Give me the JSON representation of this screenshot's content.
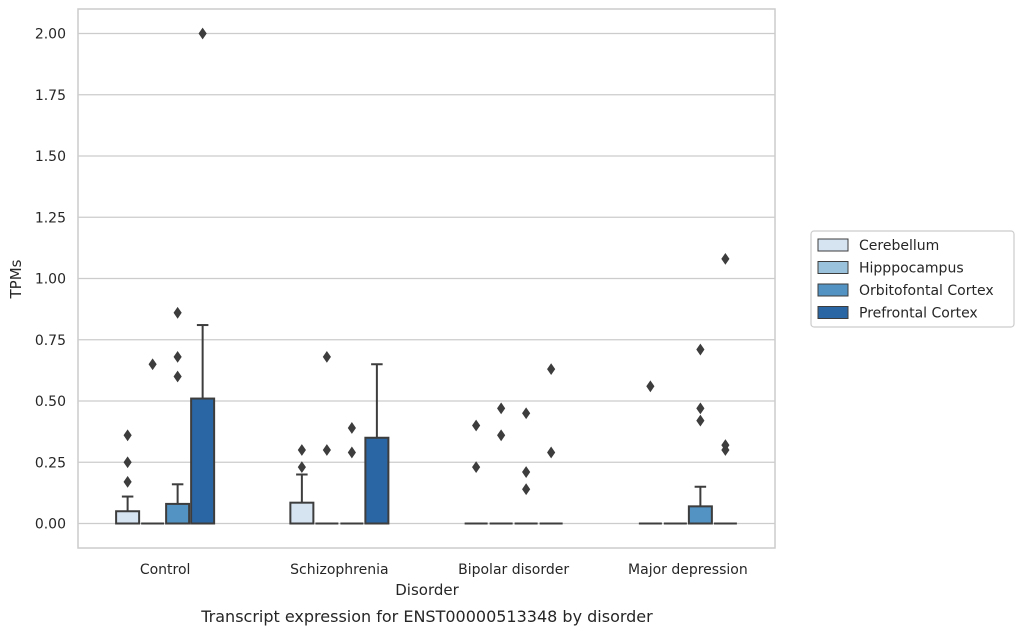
{
  "chart_data": {
    "type": "boxplot",
    "caption": "Transcript expression for ENST00000513348 by disorder",
    "xlabel": "Disorder",
    "ylabel": "TPMs",
    "ylim": [
      -0.1,
      2.1
    ],
    "yticks": [
      "0.00",
      "0.25",
      "0.50",
      "0.75",
      "1.00",
      "1.25",
      "1.50",
      "1.75",
      "2.00"
    ],
    "grid": true,
    "legend_position": "right",
    "categories": [
      "Control",
      "Schizophrenia",
      "Bipolar disorder",
      "Major depression"
    ],
    "series": [
      {
        "name": "Cerebellum",
        "color": "#d6e4f2",
        "boxes": [
          {
            "q1": 0,
            "median": 0,
            "q3": 0.05,
            "whisker_low": 0,
            "whisker_high": 0.11,
            "outliers": [
              0.17,
              0.25,
              0.36
            ]
          },
          {
            "q1": 0,
            "median": 0,
            "q3": 0.085,
            "whisker_low": 0,
            "whisker_high": 0.2,
            "outliers": [
              0.23,
              0.3
            ]
          },
          {
            "q1": 0,
            "median": 0,
            "q3": 0,
            "whisker_low": 0,
            "whisker_high": 0,
            "outliers": [
              0.23,
              0.4
            ]
          },
          {
            "q1": 0,
            "median": 0,
            "q3": 0,
            "whisker_low": 0,
            "whisker_high": 0,
            "outliers": [
              0.56
            ]
          }
        ]
      },
      {
        "name": "Hipppocampus",
        "color": "#9ac2dc",
        "boxes": [
          {
            "q1": 0,
            "median": 0,
            "q3": 0,
            "whisker_low": 0,
            "whisker_high": 0,
            "outliers": [
              0.65
            ]
          },
          {
            "q1": 0,
            "median": 0,
            "q3": 0,
            "whisker_low": 0,
            "whisker_high": 0,
            "outliers": [
              0.3,
              0.68
            ]
          },
          {
            "q1": 0,
            "median": 0,
            "q3": 0,
            "whisker_low": 0,
            "whisker_high": 0,
            "outliers": [
              0.36,
              0.47
            ]
          },
          {
            "q1": 0,
            "median": 0,
            "q3": 0,
            "whisker_low": 0,
            "whisker_high": 0,
            "outliers": []
          }
        ]
      },
      {
        "name": "Orbitofontal Cortex",
        "color": "#5393c3",
        "boxes": [
          {
            "q1": 0,
            "median": 0,
            "q3": 0.08,
            "whisker_low": 0,
            "whisker_high": 0.16,
            "outliers": [
              0.6,
              0.68,
              0.86
            ]
          },
          {
            "q1": 0,
            "median": 0,
            "q3": 0,
            "whisker_low": 0,
            "whisker_high": 0,
            "outliers": [
              0.29,
              0.39
            ]
          },
          {
            "q1": 0,
            "median": 0,
            "q3": 0,
            "whisker_low": 0,
            "whisker_high": 0,
            "outliers": [
              0.14,
              0.21,
              0.45
            ]
          },
          {
            "q1": 0,
            "median": 0,
            "q3": 0.07,
            "whisker_low": 0,
            "whisker_high": 0.15,
            "outliers": [
              0.42,
              0.47,
              0.71
            ]
          }
        ]
      },
      {
        "name": "Prefrontal Cortex",
        "color": "#2b66a4",
        "boxes": [
          {
            "q1": 0,
            "median": 0,
            "q3": 0.51,
            "whisker_low": 0,
            "whisker_high": 0.81,
            "outliers": [
              2.0
            ]
          },
          {
            "q1": 0,
            "median": 0,
            "q3": 0.35,
            "whisker_low": 0,
            "whisker_high": 0.65,
            "outliers": []
          },
          {
            "q1": 0,
            "median": 0,
            "q3": 0,
            "whisker_low": 0,
            "whisker_high": 0,
            "outliers": [
              0.29,
              0.63
            ]
          },
          {
            "q1": 0,
            "median": 0,
            "q3": 0,
            "whisker_low": 0,
            "whisker_high": 0,
            "outliers": [
              0.3,
              0.32,
              1.08
            ]
          }
        ]
      }
    ]
  }
}
